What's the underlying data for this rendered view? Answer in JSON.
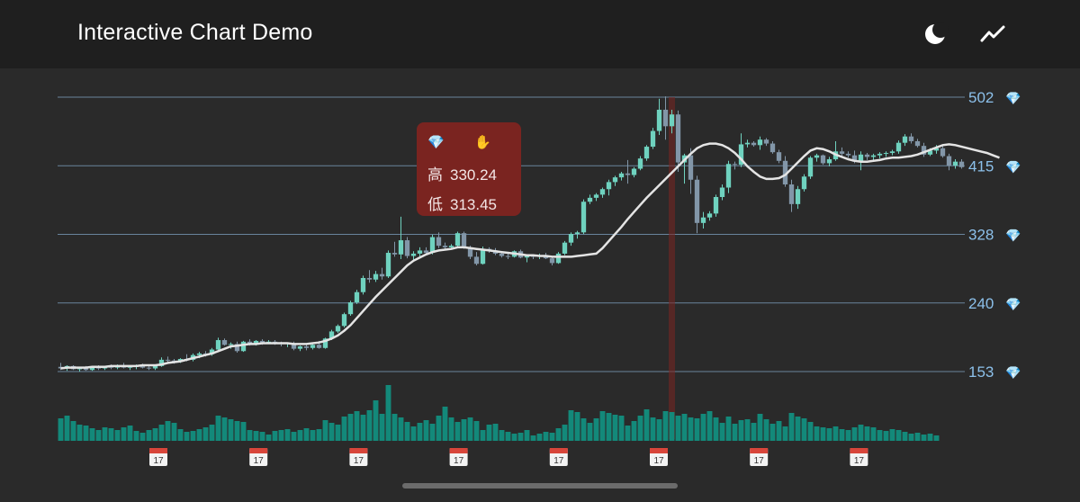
{
  "app": {
    "title": "Interactive Chart Demo"
  },
  "icons": {
    "theme": "moon-icon",
    "indicator": "trend-line-icon",
    "price_label": "gem-icon",
    "date_label": "calendar-icon",
    "tooltip_hand": "raised-hand-icon"
  },
  "colors": {
    "background": "#2a2a2a",
    "appbar": "#1f1f1f",
    "up": "#6fd2bf",
    "down": "#8296a8",
    "volume": "#13897a",
    "ma": "#e4e4e4",
    "gridline": "#7ea3c2",
    "axis_text": "#8cc0ea",
    "tooltip": "#7a2420",
    "crosshair": "#7a2420"
  },
  "tooltip": {
    "high_label": "高",
    "high_value": "330.24",
    "low_label": "低",
    "low_value": "313.45"
  },
  "date_labels": [
    "17",
    "17",
    "17",
    "17",
    "17",
    "17",
    "17",
    "17"
  ],
  "chart_data": {
    "type": "candlestick",
    "y_ticks": [
      "502",
      "415",
      "328",
      "240",
      "153"
    ],
    "ylim": [
      153,
      502
    ],
    "selected_index": 97,
    "candles": [
      {
        "o": 159,
        "h": 164,
        "l": 155,
        "c": 157
      },
      {
        "o": 157,
        "h": 161,
        "l": 154,
        "c": 160
      },
      {
        "o": 160,
        "h": 161,
        "l": 155,
        "c": 156
      },
      {
        "o": 156,
        "h": 158,
        "l": 153,
        "c": 157
      },
      {
        "o": 157,
        "h": 160,
        "l": 154,
        "c": 155
      },
      {
        "o": 155,
        "h": 158,
        "l": 154,
        "c": 158
      },
      {
        "o": 158,
        "h": 161,
        "l": 155,
        "c": 157
      },
      {
        "o": 157,
        "h": 160,
        "l": 155,
        "c": 159
      },
      {
        "o": 159,
        "h": 162,
        "l": 156,
        "c": 158
      },
      {
        "o": 158,
        "h": 162,
        "l": 156,
        "c": 161
      },
      {
        "o": 161,
        "h": 164,
        "l": 157,
        "c": 158
      },
      {
        "o": 158,
        "h": 160,
        "l": 155,
        "c": 159
      },
      {
        "o": 159,
        "h": 162,
        "l": 156,
        "c": 161
      },
      {
        "o": 161,
        "h": 163,
        "l": 157,
        "c": 158
      },
      {
        "o": 158,
        "h": 160,
        "l": 155,
        "c": 157
      },
      {
        "o": 157,
        "h": 161,
        "l": 155,
        "c": 160
      },
      {
        "o": 160,
        "h": 171,
        "l": 159,
        "c": 168
      },
      {
        "o": 168,
        "h": 172,
        "l": 165,
        "c": 167
      },
      {
        "o": 167,
        "h": 169,
        "l": 163,
        "c": 166
      },
      {
        "o": 166,
        "h": 170,
        "l": 164,
        "c": 169
      },
      {
        "o": 169,
        "h": 175,
        "l": 166,
        "c": 168
      },
      {
        "o": 168,
        "h": 176,
        "l": 166,
        "c": 174
      },
      {
        "o": 174,
        "h": 178,
        "l": 170,
        "c": 176
      },
      {
        "o": 176,
        "h": 179,
        "l": 172,
        "c": 175
      },
      {
        "o": 175,
        "h": 183,
        "l": 173,
        "c": 181
      },
      {
        "o": 181,
        "h": 196,
        "l": 179,
        "c": 193
      },
      {
        "o": 193,
        "h": 195,
        "l": 186,
        "c": 187
      },
      {
        "o": 187,
        "h": 190,
        "l": 182,
        "c": 188
      },
      {
        "o": 188,
        "h": 191,
        "l": 177,
        "c": 179
      },
      {
        "o": 179,
        "h": 192,
        "l": 178,
        "c": 191
      },
      {
        "o": 191,
        "h": 194,
        "l": 186,
        "c": 189
      },
      {
        "o": 189,
        "h": 193,
        "l": 186,
        "c": 192
      },
      {
        "o": 192,
        "h": 194,
        "l": 187,
        "c": 190
      },
      {
        "o": 190,
        "h": 193,
        "l": 188,
        "c": 191
      },
      {
        "o": 191,
        "h": 193,
        "l": 187,
        "c": 189
      },
      {
        "o": 189,
        "h": 191,
        "l": 185,
        "c": 188
      },
      {
        "o": 188,
        "h": 190,
        "l": 184,
        "c": 189
      },
      {
        "o": 189,
        "h": 191,
        "l": 180,
        "c": 182
      },
      {
        "o": 182,
        "h": 186,
        "l": 179,
        "c": 185
      },
      {
        "o": 185,
        "h": 189,
        "l": 180,
        "c": 183
      },
      {
        "o": 183,
        "h": 188,
        "l": 181,
        "c": 187
      },
      {
        "o": 187,
        "h": 192,
        "l": 182,
        "c": 183
      },
      {
        "o": 183,
        "h": 196,
        "l": 182,
        "c": 195
      },
      {
        "o": 195,
        "h": 206,
        "l": 193,
        "c": 204
      },
      {
        "o": 204,
        "h": 213,
        "l": 202,
        "c": 211
      },
      {
        "o": 211,
        "h": 228,
        "l": 209,
        "c": 226
      },
      {
        "o": 226,
        "h": 243,
        "l": 224,
        "c": 241
      },
      {
        "o": 241,
        "h": 257,
        "l": 239,
        "c": 254
      },
      {
        "o": 254,
        "h": 275,
        "l": 251,
        "c": 272
      },
      {
        "o": 272,
        "h": 282,
        "l": 266,
        "c": 270
      },
      {
        "o": 270,
        "h": 281,
        "l": 267,
        "c": 277
      },
      {
        "o": 277,
        "h": 285,
        "l": 270,
        "c": 274
      },
      {
        "o": 274,
        "h": 307,
        "l": 272,
        "c": 304
      },
      {
        "o": 304,
        "h": 318,
        "l": 299,
        "c": 302
      },
      {
        "o": 302,
        "h": 350,
        "l": 296,
        "c": 320
      },
      {
        "o": 320,
        "h": 324,
        "l": 297,
        "c": 300
      },
      {
        "o": 300,
        "h": 306,
        "l": 294,
        "c": 303
      },
      {
        "o": 303,
        "h": 311,
        "l": 298,
        "c": 307
      },
      {
        "o": 307,
        "h": 311,
        "l": 303,
        "c": 304
      },
      {
        "o": 304,
        "h": 327,
        "l": 302,
        "c": 324
      },
      {
        "o": 324,
        "h": 330,
        "l": 310,
        "c": 313
      },
      {
        "o": 313,
        "h": 317,
        "l": 308,
        "c": 311
      },
      {
        "o": 311,
        "h": 315,
        "l": 309,
        "c": 313
      },
      {
        "o": 313,
        "h": 331,
        "l": 311,
        "c": 329
      },
      {
        "o": 329,
        "h": 331,
        "l": 309,
        "c": 311
      },
      {
        "o": 311,
        "h": 313,
        "l": 296,
        "c": 299
      },
      {
        "o": 299,
        "h": 305,
        "l": 288,
        "c": 290
      },
      {
        "o": 290,
        "h": 312,
        "l": 289,
        "c": 309
      },
      {
        "o": 309,
        "h": 311,
        "l": 304,
        "c": 307
      },
      {
        "o": 307,
        "h": 310,
        "l": 301,
        "c": 303
      },
      {
        "o": 303,
        "h": 306,
        "l": 298,
        "c": 300
      },
      {
        "o": 300,
        "h": 304,
        "l": 296,
        "c": 299
      },
      {
        "o": 299,
        "h": 307,
        "l": 298,
        "c": 306
      },
      {
        "o": 306,
        "h": 308,
        "l": 297,
        "c": 298
      },
      {
        "o": 298,
        "h": 301,
        "l": 292,
        "c": 300
      },
      {
        "o": 300,
        "h": 302,
        "l": 296,
        "c": 299
      },
      {
        "o": 299,
        "h": 303,
        "l": 296,
        "c": 301
      },
      {
        "o": 301,
        "h": 304,
        "l": 296,
        "c": 297
      },
      {
        "o": 297,
        "h": 300,
        "l": 288,
        "c": 291
      },
      {
        "o": 291,
        "h": 305,
        "l": 290,
        "c": 303
      },
      {
        "o": 303,
        "h": 319,
        "l": 301,
        "c": 317
      },
      {
        "o": 317,
        "h": 330,
        "l": 313,
        "c": 328
      },
      {
        "o": 328,
        "h": 332,
        "l": 322,
        "c": 330
      },
      {
        "o": 330,
        "h": 372,
        "l": 328,
        "c": 369
      },
      {
        "o": 369,
        "h": 378,
        "l": 366,
        "c": 374
      },
      {
        "o": 374,
        "h": 380,
        "l": 370,
        "c": 378
      },
      {
        "o": 378,
        "h": 387,
        "l": 374,
        "c": 385
      },
      {
        "o": 385,
        "h": 397,
        "l": 377,
        "c": 394
      },
      {
        "o": 394,
        "h": 402,
        "l": 389,
        "c": 400
      },
      {
        "o": 400,
        "h": 407,
        "l": 396,
        "c": 405
      },
      {
        "o": 405,
        "h": 422,
        "l": 392,
        "c": 403
      },
      {
        "o": 403,
        "h": 413,
        "l": 400,
        "c": 411
      },
      {
        "o": 411,
        "h": 427,
        "l": 409,
        "c": 424
      },
      {
        "o": 424,
        "h": 441,
        "l": 421,
        "c": 439
      },
      {
        "o": 439,
        "h": 463,
        "l": 436,
        "c": 459
      },
      {
        "o": 459,
        "h": 500,
        "l": 454,
        "c": 486
      },
      {
        "o": 486,
        "h": 503,
        "l": 448,
        "c": 465
      },
      {
        "o": 465,
        "h": 486,
        "l": 456,
        "c": 480
      },
      {
        "o": 480,
        "h": 485,
        "l": 407,
        "c": 419
      },
      {
        "o": 419,
        "h": 430,
        "l": 392,
        "c": 428
      },
      {
        "o": 428,
        "h": 437,
        "l": 379,
        "c": 397
      },
      {
        "o": 397,
        "h": 402,
        "l": 329,
        "c": 342
      },
      {
        "o": 342,
        "h": 356,
        "l": 335,
        "c": 349
      },
      {
        "o": 349,
        "h": 357,
        "l": 345,
        "c": 354
      },
      {
        "o": 354,
        "h": 378,
        "l": 350,
        "c": 375
      },
      {
        "o": 375,
        "h": 391,
        "l": 371,
        "c": 387
      },
      {
        "o": 387,
        "h": 421,
        "l": 380,
        "c": 417
      },
      {
        "o": 417,
        "h": 420,
        "l": 410,
        "c": 416
      },
      {
        "o": 416,
        "h": 456,
        "l": 413,
        "c": 442
      },
      {
        "o": 442,
        "h": 448,
        "l": 438,
        "c": 444
      },
      {
        "o": 444,
        "h": 446,
        "l": 439,
        "c": 441
      },
      {
        "o": 441,
        "h": 452,
        "l": 435,
        "c": 448
      },
      {
        "o": 448,
        "h": 450,
        "l": 440,
        "c": 443
      },
      {
        "o": 443,
        "h": 446,
        "l": 430,
        "c": 432
      },
      {
        "o": 432,
        "h": 435,
        "l": 418,
        "c": 421
      },
      {
        "o": 421,
        "h": 427,
        "l": 388,
        "c": 391
      },
      {
        "o": 391,
        "h": 397,
        "l": 356,
        "c": 366
      },
      {
        "o": 366,
        "h": 389,
        "l": 360,
        "c": 385
      },
      {
        "o": 385,
        "h": 404,
        "l": 382,
        "c": 401
      },
      {
        "o": 401,
        "h": 427,
        "l": 398,
        "c": 425
      },
      {
        "o": 425,
        "h": 430,
        "l": 420,
        "c": 428
      },
      {
        "o": 428,
        "h": 429,
        "l": 416,
        "c": 418
      },
      {
        "o": 418,
        "h": 426,
        "l": 414,
        "c": 423
      },
      {
        "o": 423,
        "h": 446,
        "l": 421,
        "c": 433
      },
      {
        "o": 433,
        "h": 438,
        "l": 427,
        "c": 430
      },
      {
        "o": 430,
        "h": 433,
        "l": 425,
        "c": 428
      },
      {
        "o": 428,
        "h": 434,
        "l": 418,
        "c": 420
      },
      {
        "o": 420,
        "h": 433,
        "l": 409,
        "c": 429
      },
      {
        "o": 429,
        "h": 431,
        "l": 422,
        "c": 426
      },
      {
        "o": 426,
        "h": 430,
        "l": 421,
        "c": 428
      },
      {
        "o": 428,
        "h": 432,
        "l": 424,
        "c": 430
      },
      {
        "o": 430,
        "h": 433,
        "l": 426,
        "c": 431
      },
      {
        "o": 431,
        "h": 435,
        "l": 428,
        "c": 433
      },
      {
        "o": 433,
        "h": 447,
        "l": 430,
        "c": 444
      },
      {
        "o": 444,
        "h": 455,
        "l": 440,
        "c": 452
      },
      {
        "o": 452,
        "h": 456,
        "l": 443,
        "c": 446
      },
      {
        "o": 446,
        "h": 449,
        "l": 438,
        "c": 440
      },
      {
        "o": 440,
        "h": 444,
        "l": 426,
        "c": 429
      },
      {
        "o": 429,
        "h": 437,
        "l": 427,
        "c": 434
      },
      {
        "o": 434,
        "h": 441,
        "l": 430,
        "c": 437
      },
      {
        "o": 437,
        "h": 440,
        "l": 425,
        "c": 427
      },
      {
        "o": 427,
        "h": 430,
        "l": 409,
        "c": 415
      },
      {
        "o": 415,
        "h": 423,
        "l": 411,
        "c": 420
      },
      {
        "o": 420,
        "h": 423,
        "l": 411,
        "c": 413
      }
    ],
    "ma_line": [
      157,
      158,
      158,
      158,
      158,
      159,
      159,
      159,
      160,
      160,
      160,
      160,
      160,
      161,
      161,
      161,
      162,
      164,
      165,
      166,
      168,
      170,
      172,
      174,
      176,
      179,
      182,
      185,
      186,
      187,
      188,
      188,
      189,
      189,
      189,
      189,
      189,
      188,
      188,
      188,
      189,
      190,
      192,
      195,
      199,
      205,
      212,
      221,
      230,
      239,
      248,
      256,
      264,
      272,
      280,
      288,
      294,
      298,
      302,
      305,
      307,
      308,
      309,
      311,
      311,
      310,
      309,
      308,
      307,
      306,
      305,
      304,
      303,
      302,
      301,
      301,
      300,
      300,
      299,
      299,
      299,
      299,
      300,
      301,
      302,
      303,
      310,
      319,
      328,
      337,
      347,
      356,
      365,
      374,
      382,
      390,
      398,
      406,
      414,
      422,
      430,
      437,
      441,
      443,
      443,
      441,
      437,
      431,
      423,
      414,
      407,
      401,
      398,
      398,
      399,
      403,
      411,
      419,
      427,
      434,
      437,
      436,
      433,
      429,
      426,
      423,
      421,
      420,
      420,
      421,
      422,
      424,
      425,
      425,
      426,
      427,
      429,
      432,
      435,
      438,
      441,
      442,
      441,
      439,
      437,
      435,
      433,
      431,
      428,
      425
    ],
    "volume": [
      25,
      28,
      22,
      18,
      17,
      14,
      12,
      15,
      14,
      12,
      15,
      17,
      11,
      9,
      12,
      14,
      18,
      22,
      20,
      13,
      10,
      11,
      13,
      15,
      18,
      28,
      26,
      24,
      22,
      21,
      12,
      11,
      10,
      7,
      11,
      12,
      13,
      10,
      12,
      14,
      12,
      13,
      23,
      20,
      18,
      27,
      30,
      33,
      29,
      34,
      45,
      30,
      62,
      30,
      26,
      21,
      16,
      20,
      23,
      19,
      28,
      38,
      26,
      21,
      24,
      26,
      22,
      12,
      18,
      19,
      12,
      10,
      8,
      9,
      12,
      6,
      8,
      10,
      9,
      14,
      18,
      34,
      32,
      25,
      20,
      25,
      33,
      31,
      29,
      28,
      17,
      22,
      28,
      35,
      26,
      24,
      33,
      32,
      28,
      30,
      26,
      25,
      30,
      33,
      26,
      20,
      27,
      19,
      23,
      24,
      20,
      30,
      24,
      19,
      22,
      16,
      31,
      27,
      25,
      21,
      16,
      15,
      14,
      16,
      13,
      12,
      15,
      18,
      16,
      15,
      12,
      11,
      13,
      12,
      10,
      8,
      9,
      7,
      8,
      6
    ]
  }
}
